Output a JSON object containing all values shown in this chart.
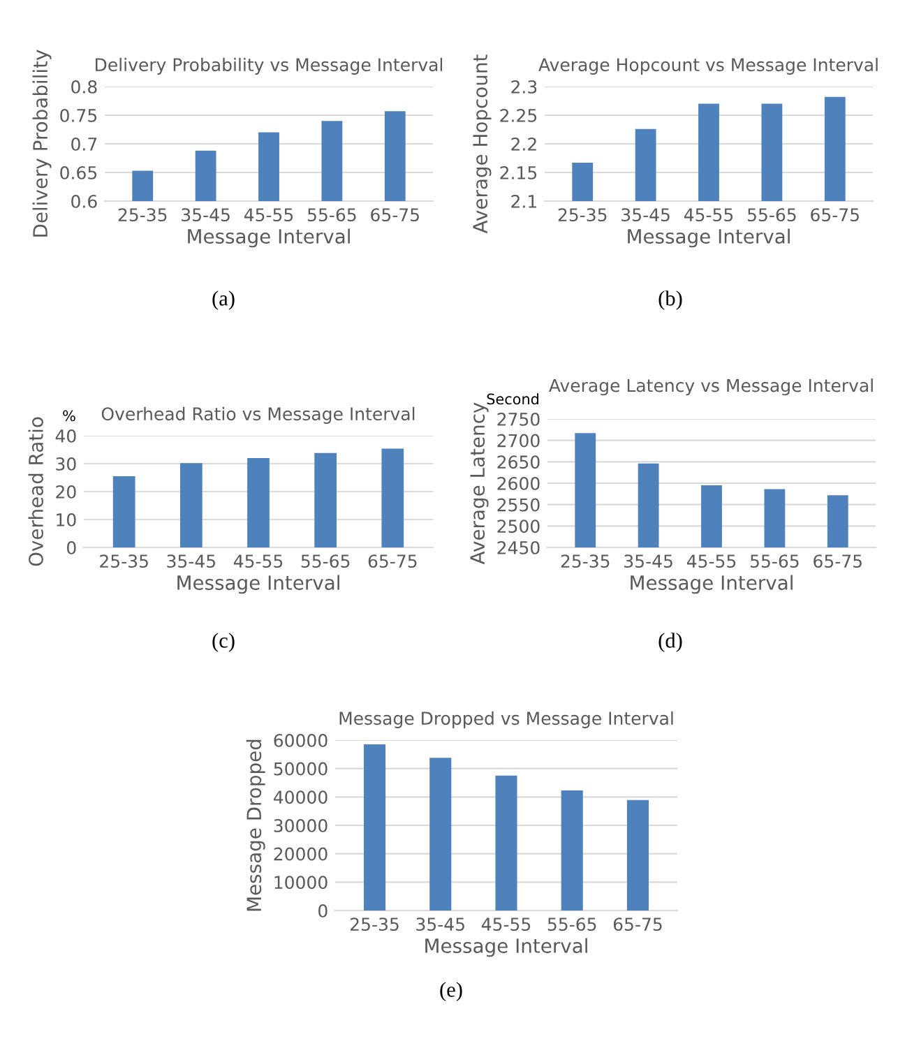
{
  "chart_data": [
    {
      "type": "bar",
      "title": "Delivery Probability vs Message Interval",
      "xlabel": "Message Interval",
      "ylabel": "Delivery Probability",
      "categories": [
        "25-35",
        "35-45",
        "45-55",
        "55-65",
        "65-75"
      ],
      "values": [
        0.653,
        0.688,
        0.72,
        0.74,
        0.757
      ],
      "color": "#4f81bd",
      "ylim": [
        0.6,
        0.8
      ],
      "yticks": [
        0.6,
        0.65,
        0.7,
        0.75,
        0.8
      ],
      "grid": "y",
      "annotations": [
        "(a)"
      ]
    },
    {
      "type": "bar",
      "title": "Average Hopcount vs Message Interval",
      "xlabel": "Message Interval",
      "ylabel": "Average Hopcount",
      "categories": [
        "25-35",
        "35-45",
        "45-55",
        "55-65",
        "65-75"
      ],
      "values": [
        2.167,
        2.226,
        2.27,
        2.27,
        2.282
      ],
      "color": "#4f81bd",
      "ylim": [
        2.1,
        2.3
      ],
      "yticks": [
        2.1,
        2.15,
        2.2,
        2.25,
        2.3
      ],
      "grid": "y",
      "annotations": [
        "(b)"
      ]
    },
    {
      "type": "bar",
      "title": "Overhead Ratio vs Message Interval",
      "xlabel": "Message Interval",
      "ylabel": "Overhead Ratio",
      "categories": [
        "25-35",
        "35-45",
        "45-55",
        "55-65",
        "65-75"
      ],
      "values": [
        25.5,
        30.2,
        32,
        33.8,
        35.4
      ],
      "color": "#4f81bd",
      "ylim": [
        0,
        40
      ],
      "yticks": [
        0,
        10,
        20,
        30,
        40
      ],
      "grid": "y",
      "annotations": [
        "%",
        "(c)"
      ]
    },
    {
      "type": "bar",
      "title": "Average Latency vs Message Interval",
      "xlabel": "Message Interval",
      "ylabel": "Average Latency",
      "categories": [
        "25-35",
        "35-45",
        "45-55",
        "55-65",
        "65-75"
      ],
      "values": [
        2717,
        2646,
        2595,
        2586,
        2572
      ],
      "color": "#4f81bd",
      "ylim": [
        2450,
        2750
      ],
      "yticks": [
        2450,
        2500,
        2550,
        2600,
        2650,
        2700,
        2750
      ],
      "grid": "y",
      "annotations": [
        "Second",
        "(d)"
      ]
    },
    {
      "type": "bar",
      "title": "Message Dropped vs Message Interval",
      "xlabel": "Message Interval",
      "ylabel": "Message Dropped",
      "categories": [
        "25-35",
        "35-45",
        "45-55",
        "55-65",
        "65-75"
      ],
      "values": [
        58500,
        53800,
        47500,
        42300,
        38900
      ],
      "color": "#4f81bd",
      "ylim": [
        0,
        60000
      ],
      "yticks": [
        0,
        10000,
        20000,
        30000,
        40000,
        50000,
        60000
      ],
      "grid": "y",
      "annotations": [
        "(e)"
      ]
    }
  ]
}
